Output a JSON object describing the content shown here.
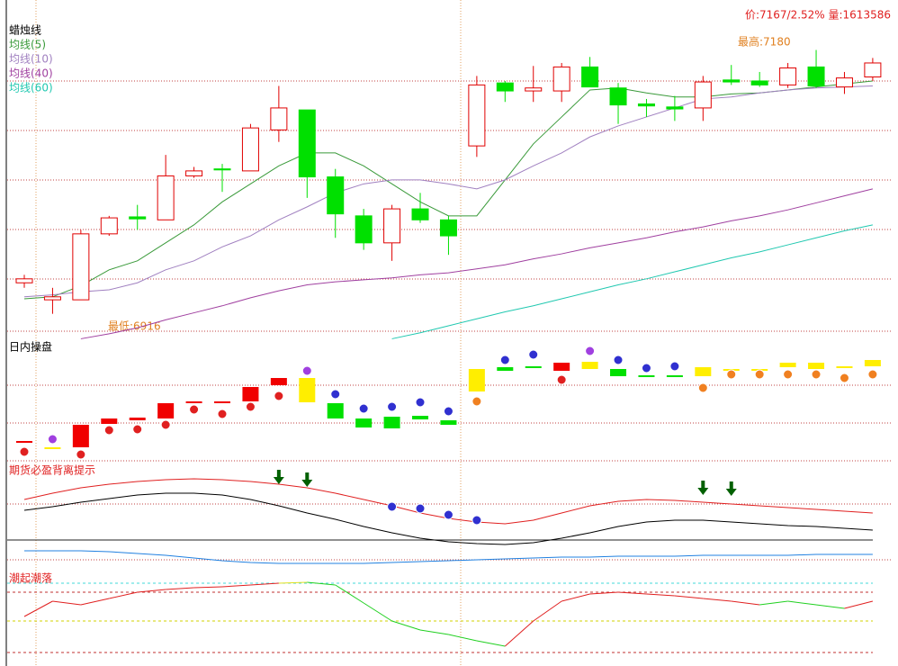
{
  "chart_data": [
    {
      "type": "candlestick",
      "title": "蜡烛线",
      "header": "价:7167/2.52% 量:1613586",
      "high_label": "最高:7180",
      "low_label": "最低:6916",
      "up_color": "#e00000",
      "down_color": "#00e000",
      "ylim": [
        6895,
        7221
      ],
      "open": [
        6947,
        6930,
        6930,
        6996,
        7013,
        7010,
        7054,
        7061,
        7059,
        7100,
        7120,
        7053,
        7014,
        6987,
        7021,
        7010,
        7084,
        7147,
        7139,
        7139,
        7163,
        7142,
        7126,
        7123,
        7122,
        7150,
        7149,
        7145,
        7163,
        7143,
        7153
      ],
      "close": [
        6951,
        6933,
        6996,
        7012,
        7011,
        7054,
        7059,
        7060,
        7102,
        7122,
        7053,
        7016,
        6987,
        7021,
        7010,
        6994,
        7145,
        7139,
        7142,
        7163,
        7143,
        7125,
        7124,
        7121,
        7148,
        7148,
        7145,
        7162,
        7144,
        7152,
        7167
      ],
      "high": [
        6955,
        6942,
        7000,
        7014,
        7025,
        7075,
        7063,
        7066,
        7106,
        7144,
        7120,
        7061,
        7021,
        7025,
        7037,
        7014,
        7154,
        7149,
        7164,
        7167,
        7173,
        7147,
        7131,
        7134,
        7154,
        7165,
        7158,
        7167,
        7180,
        7158,
        7172
      ],
      "low": [
        6942,
        6916,
        6930,
        6994,
        7000,
        7010,
        7052,
        7038,
        7059,
        7088,
        7032,
        6992,
        6980,
        6969,
        7007,
        6975,
        7073,
        7128,
        7128,
        7128,
        7143,
        7106,
        7113,
        7109,
        7109,
        7145,
        7143,
        7142,
        7142,
        7136,
        7149
      ],
      "series": [
        {
          "name": "均线(5)",
          "color": "#3a9a3a",
          "values": [
            6931,
            6933,
            6944,
            6960,
            6969,
            6987,
            7005,
            7028,
            7046,
            7064,
            7077,
            7077,
            7064,
            7046,
            7028,
            7014,
            7014,
            7050,
            7086,
            7113,
            7140,
            7142,
            7137,
            7133,
            7133,
            7136,
            7137,
            7140,
            7143,
            7146,
            7149
          ]
        },
        {
          "name": "均线(10)",
          "color": "#a080c0",
          "values": [
            6933,
            6935,
            6938,
            6940,
            6947,
            6960,
            6969,
            6983,
            6994,
            7010,
            7023,
            7037,
            7046,
            7050,
            7050,
            7046,
            7041,
            7050,
            7064,
            7077,
            7093,
            7104,
            7113,
            7122,
            7131,
            7133,
            7137,
            7140,
            7142,
            7143,
            7144
          ]
        },
        {
          "name": "均线(40)",
          "color": "#a040a0",
          "values": [
            null,
            null,
            6891,
            6896,
            6902,
            6910,
            6917,
            6924,
            6932,
            6939,
            6945,
            6948,
            6950,
            6952,
            6955,
            6957,
            6961,
            6965,
            6971,
            6976,
            6982,
            6987,
            6992,
            6998,
            7003,
            7009,
            7014,
            7020,
            7027,
            7034,
            7041
          ]
        },
        {
          "name": "均线(60)",
          "color": "#20c8b0",
          "values": [
            null,
            null,
            null,
            null,
            null,
            null,
            null,
            null,
            null,
            null,
            null,
            null,
            null,
            6891,
            6897,
            6904,
            6911,
            6918,
            6924,
            6931,
            6938,
            6945,
            6951,
            6958,
            6965,
            6972,
            6978,
            6985,
            6992,
            6999,
            7005
          ]
        }
      ]
    },
    {
      "type": "intraday",
      "title": "日内操盘",
      "ylim": [
        0,
        140
      ],
      "upper": [
        25,
        18,
        43,
        50,
        51,
        67,
        69,
        69,
        85,
        95,
        95,
        67,
        50,
        52,
        53,
        48,
        105,
        107,
        108,
        112,
        113,
        105,
        98,
        98,
        107,
        105,
        105,
        112,
        112,
        108,
        115
      ],
      "lower": [
        23,
        16,
        18,
        44,
        48,
        50,
        67,
        68,
        69,
        87,
        68,
        50,
        40,
        39,
        49,
        43,
        80,
        103,
        106,
        103,
        105,
        97,
        96,
        96,
        97,
        104,
        104,
        107,
        105,
        106,
        108
      ],
      "colors": [
        "#f00000",
        "#ffee00",
        "#f00000",
        "#f00000",
        "#f00000",
        "#f00000",
        "#f00000",
        "#f00000",
        "#f00000",
        "#f00000",
        "#ffee00",
        "#00e000",
        "#00e000",
        "#00e000",
        "#00e000",
        "#00e000",
        "#ffee00",
        "#00e000",
        "#00e000",
        "#f00000",
        "#ffee00",
        "#00e000",
        "#00e000",
        "#00e000",
        "#ffee00",
        "#ffee00",
        "#ffee00",
        "#ffee00",
        "#ffee00",
        "#ffee00",
        "#ffee00"
      ],
      "dots": [
        13,
        27,
        10,
        37,
        38,
        43,
        60,
        55,
        63,
        75,
        103,
        77,
        61,
        63,
        68,
        58,
        69,
        115,
        121,
        93,
        125,
        115,
        106,
        108,
        84,
        99,
        99,
        99,
        99,
        95,
        99
      ],
      "dot_colors": [
        "#e02020",
        "#a040e0",
        "#e02020",
        "#e02020",
        "#e02020",
        "#e02020",
        "#e02020",
        "#e02020",
        "#e02020",
        "#e02020",
        "#a040e0",
        "#3030d0",
        "#3030d0",
        "#3030d0",
        "#3030d0",
        "#3030d0",
        "#f08020",
        "#3030d0",
        "#3030d0",
        "#e02020",
        "#a040e0",
        "#3030d0",
        "#3030d0",
        "#3030d0",
        "#f08020",
        "#f08020",
        "#f08020",
        "#f08020",
        "#f08020",
        "#f08020",
        "#f08020"
      ]
    },
    {
      "type": "divergence",
      "title": "期货必盈背离提示",
      "ylim": [
        0,
        115
      ],
      "baseline": 30,
      "series": [
        {
          "color": "#e02020",
          "values": [
            75,
            82,
            88,
            92,
            95,
            97,
            98,
            97,
            95,
            92,
            88,
            82,
            75,
            68,
            60,
            54,
            50,
            48,
            52,
            60,
            68,
            73,
            75,
            74,
            72,
            70,
            68,
            66,
            64,
            62,
            60
          ]
        },
        {
          "color": "#000000",
          "values": [
            63,
            67,
            72,
            76,
            80,
            82,
            82,
            80,
            75,
            68,
            60,
            53,
            45,
            38,
            32,
            28,
            26,
            25,
            27,
            32,
            38,
            45,
            50,
            52,
            52,
            50,
            48,
            46,
            45,
            43,
            41
          ]
        },
        {
          "color": "#2080e0",
          "values": [
            18,
            18,
            18,
            17,
            15,
            13,
            10,
            7,
            5,
            4,
            4,
            4,
            4,
            5,
            6,
            7,
            8,
            9,
            10,
            11,
            11,
            12,
            12,
            12,
            13,
            13,
            13,
            13,
            14,
            14,
            14
          ]
        }
      ],
      "arrows": [
        null,
        null,
        null,
        null,
        null,
        null,
        null,
        null,
        null,
        92,
        89,
        null,
        null,
        null,
        null,
        null,
        null,
        null,
        null,
        null,
        null,
        null,
        null,
        null,
        80,
        79,
        null,
        null,
        null,
        null,
        null
      ],
      "arrow_color": "#006000",
      "dots": [
        null,
        null,
        null,
        null,
        null,
        null,
        null,
        null,
        null,
        null,
        null,
        null,
        null,
        67,
        65,
        58,
        52,
        null,
        null,
        null,
        null,
        null,
        null,
        null,
        null,
        null,
        null,
        null,
        null,
        null,
        null
      ],
      "dot_color": "#3030d0"
    },
    {
      "type": "tide",
      "title": "潮起潮落",
      "ylim": [
        0,
        115
      ],
      "values": [
        55,
        72,
        68,
        75,
        82,
        85,
        87,
        88,
        90,
        92,
        93,
        90,
        70,
        50,
        40,
        35,
        28,
        22,
        50,
        72,
        80,
        82,
        80,
        78,
        75,
        72,
        68,
        72,
        68,
        64,
        72
      ],
      "colors": [
        "#e02020",
        "#e02020",
        "#e02020",
        "#e02020",
        "#e02020",
        "#e02020",
        "#e02020",
        "#e02020",
        "#e02020",
        "#e0e020",
        "#20d020",
        "#20d020",
        "#20d020",
        "#20d020",
        "#20d020",
        "#20d020",
        "#20d020",
        "#e02020",
        "#e02020",
        "#e02020",
        "#e02020",
        "#e02020",
        "#e02020",
        "#e02020",
        "#e02020",
        "#e02020",
        "#20d020",
        "#20d020",
        "#20d020",
        "#e02020",
        "#e02020"
      ],
      "levels": [
        {
          "value": 92,
          "color": "#40d8d8"
        },
        {
          "value": 82,
          "color": "#c03030"
        },
        {
          "value": 50,
          "color": "#d0d000"
        },
        {
          "value": 15,
          "color": "#c03030"
        }
      ]
    }
  ]
}
